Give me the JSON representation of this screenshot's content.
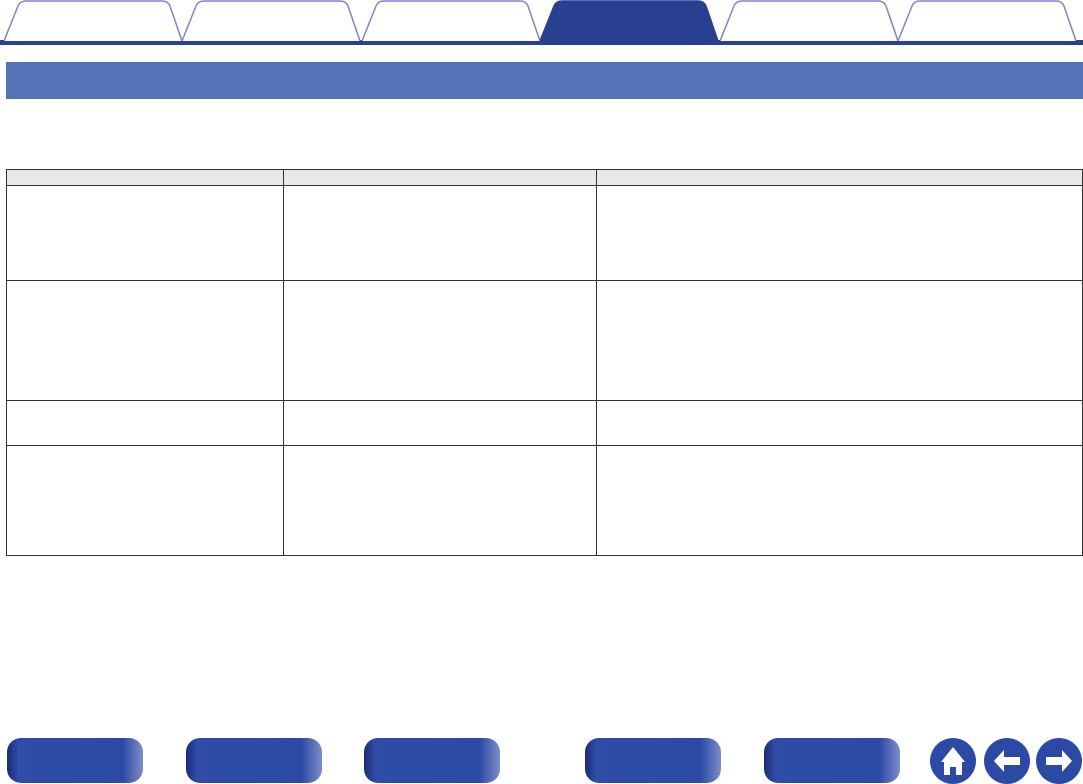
{
  "tabs": [
    {
      "label": "",
      "active": false
    },
    {
      "label": "",
      "active": false
    },
    {
      "label": "",
      "active": false
    },
    {
      "label": "",
      "active": true
    },
    {
      "label": "",
      "active": false
    },
    {
      "label": "",
      "active": false
    }
  ],
  "section": {
    "title": ""
  },
  "table": {
    "headers": [
      "",
      "",
      ""
    ],
    "rows": [
      [
        "",
        "",
        ""
      ],
      [
        "",
        "",
        ""
      ],
      [
        "",
        "",
        ""
      ],
      [
        "",
        "",
        ""
      ]
    ]
  },
  "footer": {
    "buttons": [
      "",
      "",
      "",
      "",
      ""
    ],
    "icons": [
      "home-icon",
      "arrow-left-icon",
      "arrow-right-icon"
    ]
  },
  "colors": {
    "accent": "#2b3f91",
    "banner": "#5672b6",
    "tab_outline": "#7f83cc",
    "header_bg": "#e8e8e8"
  }
}
